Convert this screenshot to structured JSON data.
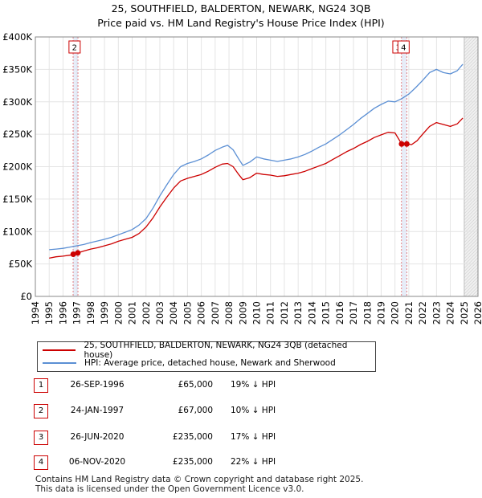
{
  "title": {
    "line1": "25, SOUTHFIELD, BALDERTON, NEWARK, NG24 3QB",
    "line2": "Price paid vs. HM Land Registry's House Price Index (HPI)"
  },
  "chart_data": {
    "type": "line",
    "title": "25, SOUTHFIELD, BALDERTON, NEWARK, NG24 3QB — Price paid vs. HM Land Registry's House Price Index (HPI)",
    "xlabel": "",
    "ylabel": "",
    "xlim": [
      1994,
      2026
    ],
    "ylim": [
      0,
      400000
    ],
    "x_ticks": [
      1994,
      1995,
      1996,
      1997,
      1998,
      1999,
      2000,
      2001,
      2002,
      2003,
      2004,
      2005,
      2006,
      2007,
      2008,
      2009,
      2010,
      2011,
      2012,
      2013,
      2014,
      2015,
      2016,
      2017,
      2018,
      2019,
      2020,
      2021,
      2022,
      2023,
      2024,
      2025,
      2026
    ],
    "y_ticks": [
      {
        "value": 0,
        "label": "£0"
      },
      {
        "value": 50000,
        "label": "£50K"
      },
      {
        "value": 100000,
        "label": "£100K"
      },
      {
        "value": 150000,
        "label": "£150K"
      },
      {
        "value": 200000,
        "label": "£200K"
      },
      {
        "value": 250000,
        "label": "£250K"
      },
      {
        "value": 300000,
        "label": "£300K"
      },
      {
        "value": 350000,
        "label": "£350K"
      },
      {
        "value": 400000,
        "label": "£400K"
      }
    ],
    "grid": true,
    "data_range_end": 2025.0,
    "series": [
      {
        "name": "25, SOUTHFIELD, BALDERTON, NEWARK, NG24 3QB (detached house)",
        "color": "#cc0000",
        "points": [
          [
            1995.0,
            59000
          ],
          [
            1995.5,
            61000
          ],
          [
            1996.0,
            62000
          ],
          [
            1996.5,
            63500
          ],
          [
            1996.74,
            65000
          ],
          [
            1997.07,
            67000
          ],
          [
            1997.5,
            70000
          ],
          [
            1998.0,
            73000
          ],
          [
            1998.5,
            75000
          ],
          [
            1999.0,
            78000
          ],
          [
            1999.5,
            81000
          ],
          [
            2000.0,
            85000
          ],
          [
            2000.5,
            88000
          ],
          [
            2001.0,
            91000
          ],
          [
            2001.5,
            97000
          ],
          [
            2002.0,
            107000
          ],
          [
            2002.5,
            121000
          ],
          [
            2003.0,
            138000
          ],
          [
            2003.5,
            153000
          ],
          [
            2004.0,
            167000
          ],
          [
            2004.5,
            178000
          ],
          [
            2005.0,
            182000
          ],
          [
            2005.5,
            185000
          ],
          [
            2006.0,
            188000
          ],
          [
            2006.5,
            193000
          ],
          [
            2007.0,
            199000
          ],
          [
            2007.5,
            204000
          ],
          [
            2007.9,
            205000
          ],
          [
            2008.3,
            200000
          ],
          [
            2008.7,
            188000
          ],
          [
            2009.0,
            180000
          ],
          [
            2009.5,
            183000
          ],
          [
            2010.0,
            190000
          ],
          [
            2010.5,
            188000
          ],
          [
            2011.0,
            187000
          ],
          [
            2011.5,
            185000
          ],
          [
            2012.0,
            186000
          ],
          [
            2012.5,
            188000
          ],
          [
            2013.0,
            190000
          ],
          [
            2013.5,
            193000
          ],
          [
            2014.0,
            197000
          ],
          [
            2014.5,
            201000
          ],
          [
            2015.0,
            205000
          ],
          [
            2015.5,
            211000
          ],
          [
            2016.0,
            217000
          ],
          [
            2016.5,
            223000
          ],
          [
            2017.0,
            228000
          ],
          [
            2017.5,
            234000
          ],
          [
            2018.0,
            239000
          ],
          [
            2018.5,
            245000
          ],
          [
            2019.0,
            249000
          ],
          [
            2019.5,
            253000
          ],
          [
            2020.0,
            252000
          ],
          [
            2020.48,
            235000
          ],
          [
            2020.85,
            235000
          ],
          [
            2021.2,
            234000
          ],
          [
            2021.6,
            240000
          ],
          [
            2022.0,
            250000
          ],
          [
            2022.5,
            262000
          ],
          [
            2023.0,
            268000
          ],
          [
            2023.5,
            265000
          ],
          [
            2024.0,
            262000
          ],
          [
            2024.5,
            266000
          ],
          [
            2024.9,
            275000
          ]
        ]
      },
      {
        "name": "HPI: Average price, detached house, Newark and Sherwood",
        "color": "#5b8fd4",
        "points": [
          [
            1995.0,
            72000
          ],
          [
            1995.5,
            73000
          ],
          [
            1996.0,
            74000
          ],
          [
            1996.5,
            76000
          ],
          [
            1997.0,
            78000
          ],
          [
            1997.5,
            80000
          ],
          [
            1998.0,
            83000
          ],
          [
            1998.5,
            85500
          ],
          [
            1999.0,
            88000
          ],
          [
            1999.5,
            91000
          ],
          [
            2000.0,
            95000
          ],
          [
            2000.5,
            99000
          ],
          [
            2001.0,
            103000
          ],
          [
            2001.5,
            110000
          ],
          [
            2002.0,
            120000
          ],
          [
            2002.5,
            136000
          ],
          [
            2003.0,
            155000
          ],
          [
            2003.5,
            172000
          ],
          [
            2004.0,
            188000
          ],
          [
            2004.5,
            200000
          ],
          [
            2005.0,
            205000
          ],
          [
            2005.5,
            208000
          ],
          [
            2006.0,
            212000
          ],
          [
            2006.5,
            218000
          ],
          [
            2007.0,
            225000
          ],
          [
            2007.5,
            230000
          ],
          [
            2007.9,
            233000
          ],
          [
            2008.3,
            226000
          ],
          [
            2008.7,
            212000
          ],
          [
            2009.0,
            202000
          ],
          [
            2009.5,
            207000
          ],
          [
            2010.0,
            215000
          ],
          [
            2010.5,
            212000
          ],
          [
            2011.0,
            210000
          ],
          [
            2011.5,
            208000
          ],
          [
            2012.0,
            210000
          ],
          [
            2012.5,
            212000
          ],
          [
            2013.0,
            215000
          ],
          [
            2013.5,
            219000
          ],
          [
            2014.0,
            224000
          ],
          [
            2014.5,
            230000
          ],
          [
            2015.0,
            235000
          ],
          [
            2015.5,
            242000
          ],
          [
            2016.0,
            249000
          ],
          [
            2016.5,
            257000
          ],
          [
            2017.0,
            265000
          ],
          [
            2017.5,
            274000
          ],
          [
            2018.0,
            282000
          ],
          [
            2018.5,
            290000
          ],
          [
            2019.0,
            296000
          ],
          [
            2019.5,
            301000
          ],
          [
            2020.0,
            300000
          ],
          [
            2020.5,
            305000
          ],
          [
            2021.0,
            312000
          ],
          [
            2021.5,
            322000
          ],
          [
            2022.0,
            333000
          ],
          [
            2022.5,
            345000
          ],
          [
            2023.0,
            350000
          ],
          [
            2023.5,
            345000
          ],
          [
            2024.0,
            343000
          ],
          [
            2024.5,
            348000
          ],
          [
            2024.9,
            358000
          ]
        ]
      }
    ],
    "sale_markers": [
      {
        "label": "1",
        "x": 1996.74,
        "value": 65000
      },
      {
        "label": "2",
        "x": 1997.07,
        "value": 67000
      },
      {
        "label": "3",
        "x": 2020.48,
        "value": 235000
      },
      {
        "label": "4",
        "x": 2020.85,
        "value": 235000
      }
    ],
    "marker_labels_shown": [
      {
        "label": "2",
        "x": 1997.07
      },
      {
        "label": "3",
        "x": 2020.48
      },
      {
        "label": "4",
        "x": 2020.85
      }
    ]
  },
  "legend": {
    "items": [
      {
        "label": "25, SOUTHFIELD, BALDERTON, NEWARK, NG24 3QB (detached house)",
        "color": "#cc0000"
      },
      {
        "label": "HPI: Average price, detached house, Newark and Sherwood",
        "color": "#5b8fd4"
      }
    ]
  },
  "sales": [
    {
      "num": "1",
      "date": "26-SEP-1996",
      "price": "£65,000",
      "hpi": "19% ↓ HPI"
    },
    {
      "num": "2",
      "date": "24-JAN-1997",
      "price": "£67,000",
      "hpi": "10% ↓ HPI"
    },
    {
      "num": "3",
      "date": "26-JUN-2020",
      "price": "£235,000",
      "hpi": "17% ↓ HPI"
    },
    {
      "num": "4",
      "date": "06-NOV-2020",
      "price": "£235,000",
      "hpi": "22% ↓ HPI"
    }
  ],
  "footer": {
    "line1": "Contains HM Land Registry data © Crown copyright and database right 2025.",
    "line2": "This data is licensed under the Open Government Licence v3.0."
  }
}
